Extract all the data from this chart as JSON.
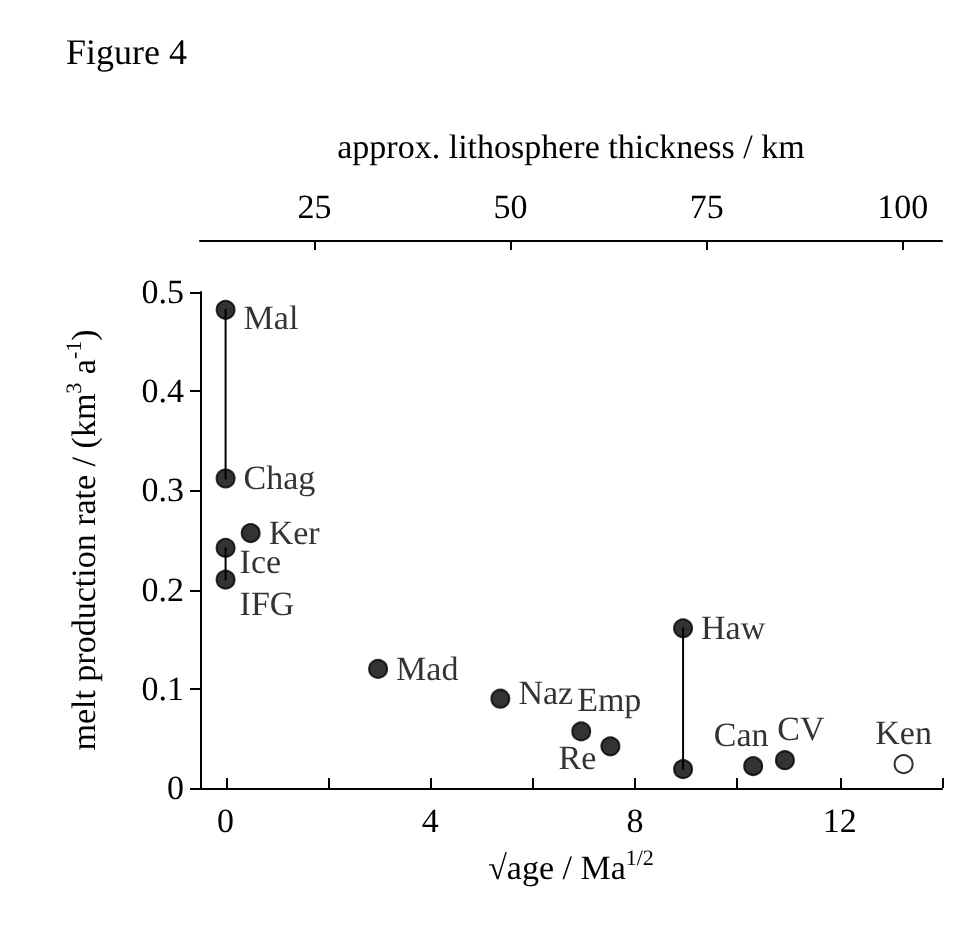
{
  "chart_data": {
    "type": "scatter",
    "title": "Figure 4",
    "xlabel": "√age / Ma$^{1/2}$",
    "ylabel": "melt production rate / (km$^{3}$ a$^{-1}$)",
    "x2label": "approx. lithosphere thickness / km",
    "xlim": [
      -0.5,
      14
    ],
    "xticks": [
      0,
      {
        "value": 2,
        "label": null
      },
      4,
      {
        "value": 6,
        "label": null
      },
      8,
      {
        "value": 10,
        "label": null
      },
      12,
      {
        "value": 14,
        "label": null
      }
    ],
    "x2lim": [
      10.4,
      105
    ],
    "x2ticks": [
      25,
      50,
      75,
      100
    ],
    "ylim": [
      0,
      0.5
    ],
    "yticks": [
      0,
      0.1,
      0.2,
      0.3,
      0.4,
      0.5
    ],
    "marker": "circle",
    "grid": false,
    "series": [
      {
        "color": "#000000",
        "x": [
          0,
          0,
          0.49,
          0,
          0,
          2.98,
          5.37,
          6.95,
          7.52,
          8.94,
          8.94,
          10.31,
          10.93
        ],
        "values": [
          0.482,
          0.312,
          0.257,
          0.242,
          0.21,
          0.12,
          0.09,
          0.057,
          0.042,
          0.161,
          0.019,
          0.022,
          0.028
        ]
      },
      {
        "color": "#ffffff",
        "x": [
          13.25
        ],
        "values": [
          0.024
        ]
      },
      {
        "type": "line",
        "color": "#000000",
        "marker": "none",
        "x": [
          0,
          0
        ],
        "values": [
          0.482,
          0.312
        ]
      },
      {
        "type": "line",
        "color": "#000000",
        "marker": "none",
        "x": [
          0,
          0
        ],
        "values": [
          0.242,
          0.21
        ]
      },
      {
        "type": "line",
        "color": "#000000",
        "marker": "none",
        "x": [
          8.94,
          8.94
        ],
        "values": [
          0.161,
          0.019
        ]
      }
    ],
    "annotations": [
      {
        "text": "Mal",
        "x": 0,
        "y": 0.482
      },
      {
        "text": "Chag",
        "x": 0,
        "y": 0.312
      },
      {
        "text": "Ker",
        "x": 0.49,
        "y": 0.257
      },
      {
        "text": "Ice",
        "x": 0,
        "y": 0.242
      },
      {
        "text": "IFG",
        "x": 0,
        "y": 0.21
      },
      {
        "text": "Mad",
        "x": 2.98,
        "y": 0.12
      },
      {
        "text": "Naz",
        "x": 5.37,
        "y": 0.09
      },
      {
        "text": "Emp",
        "x": 6.95,
        "y": 0.057
      },
      {
        "text": "Re",
        "x": 7.52,
        "y": 0.042
      },
      {
        "text": "Haw",
        "x": 8.94,
        "y": 0.161
      },
      {
        "text": "Can",
        "x": 10.31,
        "y": 0.022
      },
      {
        "text": "CV",
        "x": 10.93,
        "y": 0.028
      },
      {
        "text": "Ken",
        "x": 13.25,
        "y": 0.024
      }
    ]
  }
}
